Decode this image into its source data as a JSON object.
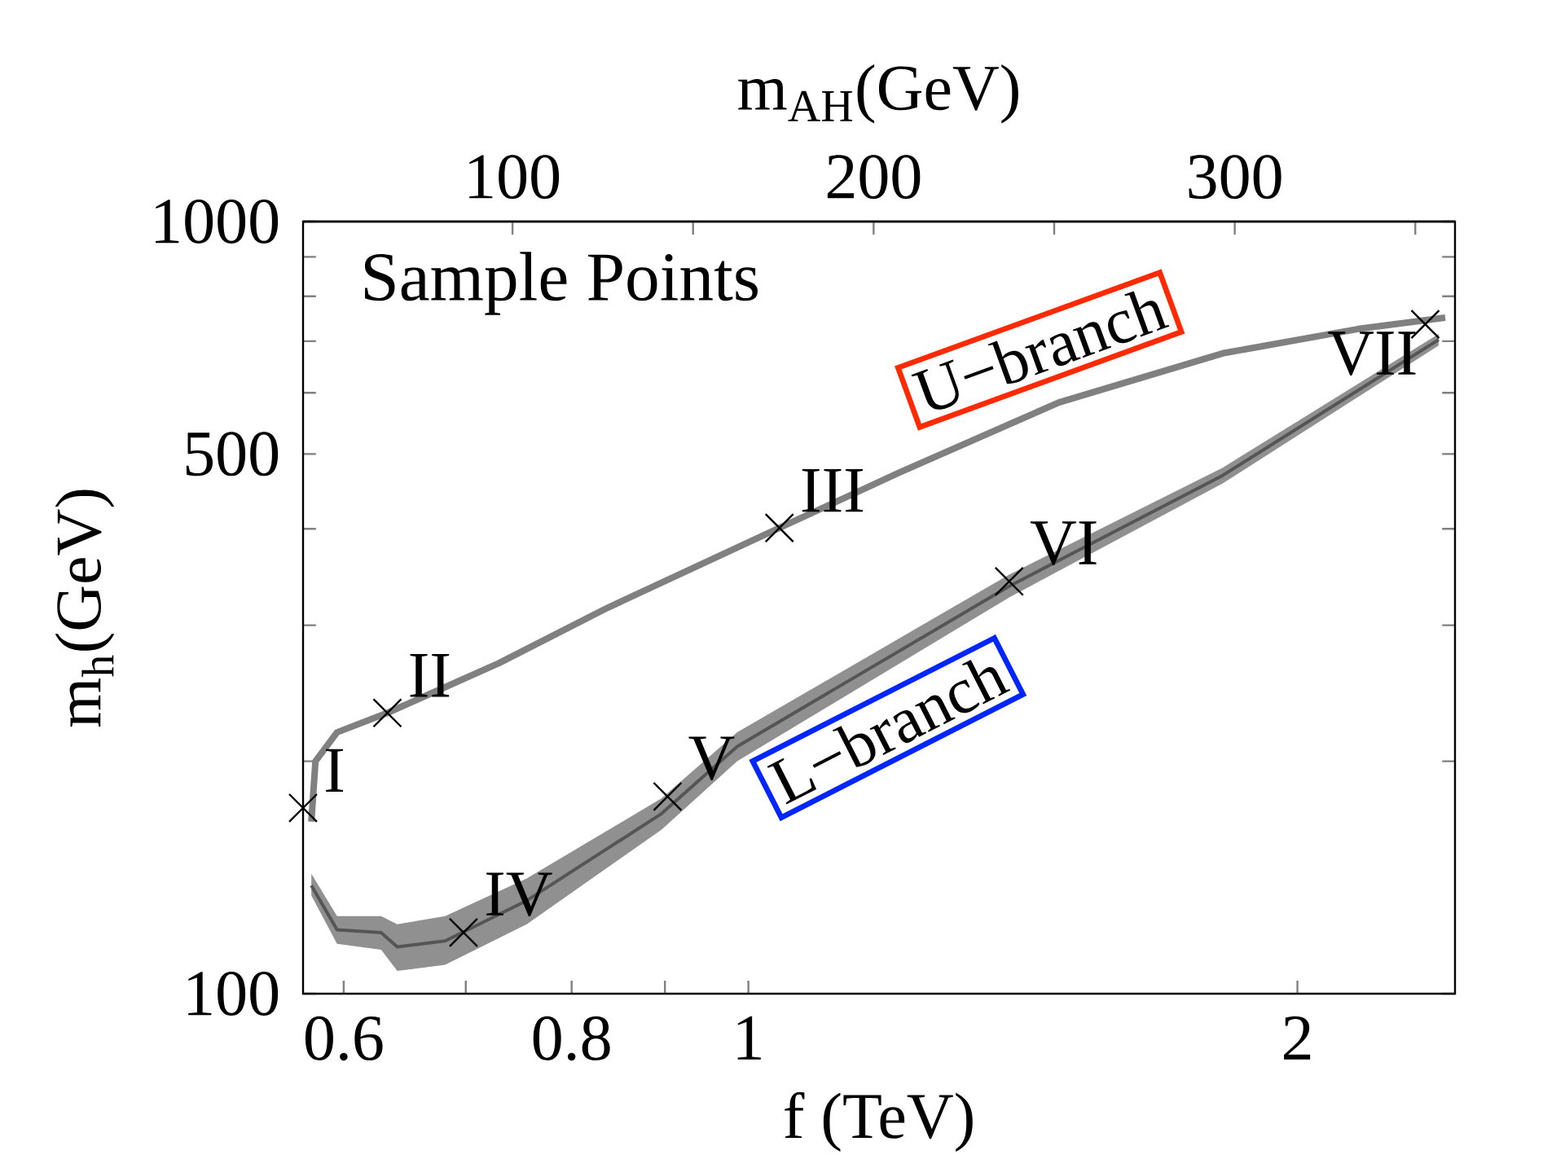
{
  "chart_data": {
    "type": "line",
    "title": "Sample Points",
    "xlabel": "f (TeV)",
    "ylabel": "m$_{h}$(GeV)",
    "x2label": "m$_{AH}$(GeV)",
    "log": "xy",
    "xlim": [
      0.57,
      2.44
    ],
    "xticks": [
      0.6,
      {
        "value": 0.7,
        "label": null
      },
      0.8,
      {
        "value": 0.9,
        "label": null
      },
      1,
      2
    ],
    "ylim": [
      100,
      1000
    ],
    "yticks": [
      100,
      {
        "value": 200,
        "label": null
      },
      {
        "value": 300,
        "label": null
      },
      {
        "value": 400,
        "label": null
      },
      500,
      {
        "value": 600,
        "label": null
      },
      {
        "value": 700,
        "label": null
      },
      {
        "value": 800,
        "label": null
      },
      {
        "value": 900,
        "label": null
      },
      1000
    ],
    "x2lim": [
      42,
      361
    ],
    "x2ticks": [
      100,
      {
        "value": 150,
        "label": null
      },
      200,
      {
        "value": 250,
        "label": null
      },
      300,
      {
        "value": 350,
        "label": null
      }
    ],
    "series": [
      {
        "name": "U−branch",
        "color": "#808080",
        "x": [
          0.576,
          0.579,
          0.595,
          0.634,
          0.73,
          0.837,
          1.04,
          1.21,
          1.48,
          1.82,
          2.16,
          2.41
        ],
        "values": [
          167,
          200,
          218,
          231,
          268,
          316,
          401,
          473,
          583,
          675,
          726,
          751
        ]
      },
      {
        "name": "L−branch",
        "color": "#555555",
        "x": [
          0.576,
          0.595,
          0.629,
          0.642,
          0.682,
          0.756,
          0.896,
          0.986,
          1.39,
          1.82,
          2.39
        ],
        "values": [
          138,
          121,
          120,
          115,
          117,
          132,
          171,
          209,
          337,
          469,
          703
        ],
        "lower": [
          134,
          116,
          114,
          107,
          109,
          123,
          163,
          200,
          326,
          458,
          691
        ],
        "upper": [
          143,
          126,
          126,
          123,
          126,
          141,
          179,
          218,
          349,
          480,
          715
        ]
      },
      {
        "type": "scatter",
        "color": "#000000",
        "marker": "cross",
        "x": [
          0.57,
          0.634,
          1.04,
          0.698,
          0.903,
          1.39,
          2.35
        ],
        "values": [
          174,
          231,
          401,
          120,
          180,
          342,
          736
        ]
      }
    ],
    "annotations": [
      {
        "text": "I",
        "x": 0.57,
        "y": 174
      },
      {
        "text": "II",
        "x": 0.634,
        "y": 231
      },
      {
        "text": "III",
        "x": 1.04,
        "y": 401
      },
      {
        "text": "IV",
        "x": 0.698,
        "y": 120
      },
      {
        "text": "V",
        "x": 0.903,
        "y": 180
      },
      {
        "text": "VI",
        "x": 1.39,
        "y": 342
      },
      {
        "text": "VII",
        "x": 2.35,
        "y": 736
      }
    ]
  }
}
